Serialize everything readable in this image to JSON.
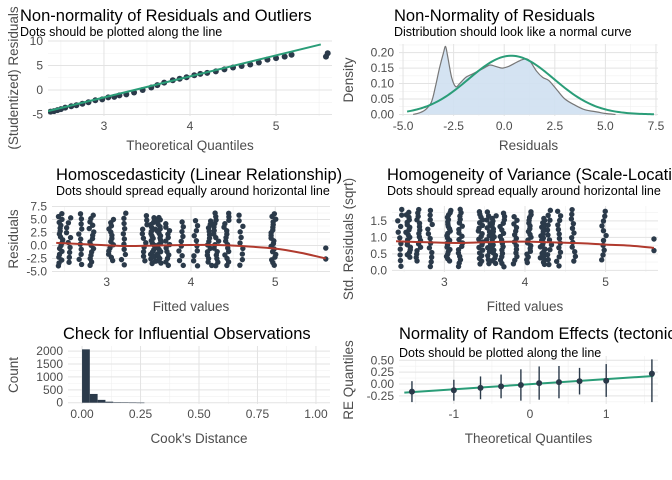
{
  "chart_data": [
    {
      "type": "scatter",
      "title": "Non-normality of Residuals and Outliers",
      "subtitle": "Dots should be plotted along the line",
      "xlabel": "Theoretical Quantiles",
      "ylabel": "(Studentized) Residuals",
      "xlim": [
        2.35,
        5.65
      ],
      "ylim": [
        -5.3,
        10.2
      ],
      "x_ticks": [
        3,
        4,
        5
      ],
      "y_ticks": [
        -5,
        0,
        5,
        10
      ],
      "reference_line": [
        [
          2.35,
          -4.3
        ],
        [
          5.52,
          9.3
        ]
      ],
      "points": [
        [
          2.38,
          -4.4
        ],
        [
          2.42,
          -4.3
        ],
        [
          2.46,
          -4.1
        ],
        [
          2.5,
          -3.9
        ],
        [
          2.55,
          -3.6
        ],
        [
          2.62,
          -3.3
        ],
        [
          2.68,
          -3.1
        ],
        [
          2.75,
          -2.8
        ],
        [
          2.82,
          -2.5
        ],
        [
          2.9,
          -2.1
        ],
        [
          2.98,
          -1.9
        ],
        [
          3.05,
          -1.5
        ],
        [
          3.12,
          -1.4
        ],
        [
          3.18,
          -1.1
        ],
        [
          3.26,
          -0.9
        ],
        [
          3.35,
          -0.5
        ],
        [
          3.45,
          0.0
        ],
        [
          3.55,
          0.5
        ],
        [
          3.62,
          1.0
        ],
        [
          3.7,
          1.5
        ],
        [
          3.8,
          2.0
        ],
        [
          3.88,
          2.3
        ],
        [
          3.96,
          2.6
        ],
        [
          4.05,
          3.0
        ],
        [
          4.12,
          3.3
        ],
        [
          4.2,
          3.5
        ],
        [
          4.3,
          3.8
        ],
        [
          4.4,
          4.2
        ],
        [
          4.5,
          4.6
        ],
        [
          4.6,
          4.9
        ],
        [
          4.7,
          5.2
        ],
        [
          4.8,
          5.6
        ],
        [
          4.9,
          6.2
        ],
        [
          5.0,
          6.5
        ],
        [
          5.1,
          6.8
        ],
        [
          5.18,
          7.2
        ],
        [
          5.58,
          6.8
        ],
        [
          5.6,
          7.5
        ]
      ],
      "colors": {
        "points": "#2b3a4a",
        "line": "#2a9d78"
      }
    },
    {
      "type": "area",
      "title": "Non-Normality of Residuals",
      "subtitle": "Distribution should look like a normal curve",
      "xlabel": "Residuals",
      "ylabel": "Density",
      "xlim": [
        -5.2,
        7.6
      ],
      "ylim": [
        -0.005,
        0.228
      ],
      "x_ticks": [
        -5.0,
        -2.5,
        0.0,
        2.5,
        5.0,
        7.5
      ],
      "x_tick_labels": [
        "-5.0",
        "-2.5",
        "0.0",
        "2.5",
        "5.0",
        "7.5"
      ],
      "y_ticks": [
        0.0,
        0.05,
        0.1,
        0.15,
        0.2
      ],
      "y_tick_labels": [
        "0.00",
        "0.05",
        "0.10",
        "0.15",
        "0.20"
      ],
      "density": [
        [
          -4.5,
          0.0
        ],
        [
          -4.2,
          0.005
        ],
        [
          -3.9,
          0.015
        ],
        [
          -3.6,
          0.04
        ],
        [
          -3.4,
          0.09
        ],
        [
          -3.2,
          0.15
        ],
        [
          -3.0,
          0.2
        ],
        [
          -2.9,
          0.22
        ],
        [
          -2.8,
          0.19
        ],
        [
          -2.6,
          0.12
        ],
        [
          -2.4,
          0.09
        ],
        [
          -2.2,
          0.1
        ],
        [
          -1.9,
          0.12
        ],
        [
          -1.6,
          0.13
        ],
        [
          -1.3,
          0.14
        ],
        [
          -1.0,
          0.15
        ],
        [
          -0.7,
          0.16
        ],
        [
          -0.4,
          0.155
        ],
        [
          -0.1,
          0.15
        ],
        [
          0.2,
          0.155
        ],
        [
          0.5,
          0.165
        ],
        [
          0.8,
          0.175
        ],
        [
          1.1,
          0.18
        ],
        [
          1.3,
          0.17
        ],
        [
          1.6,
          0.14
        ],
        [
          1.9,
          0.12
        ],
        [
          2.2,
          0.11
        ],
        [
          2.6,
          0.08
        ],
        [
          3.0,
          0.05
        ],
        [
          3.5,
          0.03
        ],
        [
          4.0,
          0.015
        ],
        [
          4.6,
          0.008
        ],
        [
          5.0,
          0.003
        ],
        [
          5.5,
          0.0
        ]
      ],
      "normal_curve": {
        "mean": 0.35,
        "sd": 2.1
      },
      "colors": {
        "fill": "#cfe0f1",
        "density_line": "#777777",
        "normal_line": "#2a9d78"
      }
    },
    {
      "type": "scatter",
      "title": "Homoscedasticity (Linear Relationship)",
      "subtitle": "Dots should spread equally around horizontal line",
      "xlabel": "Fitted values",
      "ylabel": "Residuals",
      "xlim": [
        2.35,
        5.65
      ],
      "ylim": [
        -5.1,
        7.6
      ],
      "x_ticks": [
        3,
        4,
        5
      ],
      "y_ticks": [
        -5.0,
        -2.5,
        0.0,
        2.5,
        5.0,
        7.5
      ],
      "y_tick_labels": [
        "-5.0",
        "-2.5",
        "0.0",
        "2.5",
        "5.0",
        "7.5"
      ],
      "column_x": [
        2.45,
        2.55,
        2.68,
        2.82,
        3.05,
        3.2,
        3.45,
        3.55,
        3.62,
        3.72,
        3.88,
        4.05,
        4.22,
        4.3,
        4.42,
        4.6,
        4.98
      ],
      "column_y_range": [
        -4.0,
        6.3
      ],
      "outlier_points": [
        [
          5.6,
          -0.5
        ],
        [
          5.6,
          -2.6
        ]
      ],
      "smooth_line": [
        [
          2.4,
          0.5
        ],
        [
          2.8,
          0.2
        ],
        [
          3.2,
          -0.1
        ],
        [
          3.6,
          0.0
        ],
        [
          4.0,
          0.1
        ],
        [
          4.3,
          0.1
        ],
        [
          4.6,
          -0.1
        ],
        [
          5.0,
          -0.6
        ],
        [
          5.3,
          -1.4
        ],
        [
          5.6,
          -2.5
        ]
      ],
      "colors": {
        "points": "#2b3a4a",
        "line": "#b03a2e"
      }
    },
    {
      "type": "scatter",
      "title": "Homogeneity of Variance (Scale-Location)",
      "subtitle": "Dots should spread equally around horizontal line",
      "xlabel": "Fitted values",
      "ylabel": "Std. Residuals (sqrt)",
      "xlim": [
        2.35,
        5.65
      ],
      "ylim": [
        -0.05,
        1.95
      ],
      "x_ticks": [
        3,
        4,
        5
      ],
      "y_ticks": [
        0.0,
        0.5,
        1.0,
        1.5
      ],
      "y_tick_labels": [
        "0.0",
        "0.5",
        "1.0",
        "1.5"
      ],
      "column_x": [
        2.45,
        2.55,
        2.68,
        2.82,
        3.05,
        3.2,
        3.45,
        3.55,
        3.62,
        3.72,
        3.88,
        4.05,
        4.22,
        4.3,
        4.42,
        4.6,
        4.98
      ],
      "column_y_range": [
        0.1,
        1.85
      ],
      "outlier_points": [
        [
          5.6,
          0.6
        ],
        [
          5.6,
          0.95
        ]
      ],
      "smooth_line": [
        [
          2.4,
          0.88
        ],
        [
          2.8,
          0.85
        ],
        [
          3.2,
          0.83
        ],
        [
          3.6,
          0.86
        ],
        [
          4.0,
          0.87
        ],
        [
          4.3,
          0.85
        ],
        [
          4.7,
          0.82
        ],
        [
          5.0,
          0.78
        ],
        [
          5.3,
          0.75
        ],
        [
          5.6,
          0.68
        ]
      ],
      "colors": {
        "points": "#2b3a4a",
        "line": "#b03a2e"
      }
    },
    {
      "type": "bar",
      "title": "Check for Influential Observations",
      "subtitle": "",
      "xlabel": "Cook's Distance",
      "ylabel": "Count",
      "xlim": [
        -0.06,
        1.06
      ],
      "ylim": [
        -50,
        2200
      ],
      "x_ticks": [
        0.0,
        0.25,
        0.5,
        0.75,
        1.0
      ],
      "x_tick_labels": [
        "0.00",
        "0.25",
        "0.50",
        "0.75",
        "1.00"
      ],
      "y_ticks": [
        0,
        500,
        1000,
        1500,
        2000
      ],
      "bin_width": 0.0333,
      "bins": [
        [
          0.0,
          2070
        ],
        [
          0.0333,
          340
        ],
        [
          0.0667,
          110
        ],
        [
          0.1,
          40
        ],
        [
          0.1333,
          20
        ],
        [
          0.1667,
          10
        ],
        [
          0.2,
          6
        ],
        [
          0.2333,
          3
        ]
      ],
      "colors": {
        "bars": "#2b3a4a"
      }
    },
    {
      "type": "scatter",
      "title": "Normality of Random Effects (tectonic_setting)",
      "subtitle": "Dots should be plotted along the line",
      "xlabel": "Theoretical Quantiles",
      "ylabel": "RE Quantiles",
      "xlim": [
        -1.72,
        1.68
      ],
      "ylim": [
        -0.42,
        0.59
      ],
      "x_ticks": [
        -1,
        0,
        1
      ],
      "y_ticks": [
        -0.25,
        0.0,
        0.25,
        0.5
      ],
      "y_tick_labels": [
        "-0.25",
        "0.00",
        "0.25",
        "0.50"
      ],
      "reference_line": [
        [
          -1.65,
          -0.18
        ],
        [
          1.62,
          0.17
        ]
      ],
      "points": [
        {
          "x": -1.55,
          "y": -0.16,
          "lo": -0.38,
          "hi": 0.06
        },
        {
          "x": -1.0,
          "y": -0.13,
          "lo": -0.35,
          "hi": 0.09
        },
        {
          "x": -0.65,
          "y": -0.08,
          "lo": -0.32,
          "hi": 0.16
        },
        {
          "x": -0.38,
          "y": -0.05,
          "lo": -0.3,
          "hi": 0.2
        },
        {
          "x": -0.12,
          "y": -0.02,
          "lo": -0.35,
          "hi": 0.31
        },
        {
          "x": 0.12,
          "y": 0.02,
          "lo": -0.33,
          "hi": 0.37
        },
        {
          "x": 0.38,
          "y": 0.04,
          "lo": -0.3,
          "hi": 0.38
        },
        {
          "x": 0.65,
          "y": 0.06,
          "lo": -0.22,
          "hi": 0.34
        },
        {
          "x": 1.0,
          "y": 0.07,
          "lo": -0.27,
          "hi": 0.42
        },
        {
          "x": 1.6,
          "y": 0.22,
          "lo": -0.38,
          "hi": 0.52
        }
      ],
      "colors": {
        "points": "#2b3a4a",
        "line": "#2a9d78"
      }
    }
  ]
}
